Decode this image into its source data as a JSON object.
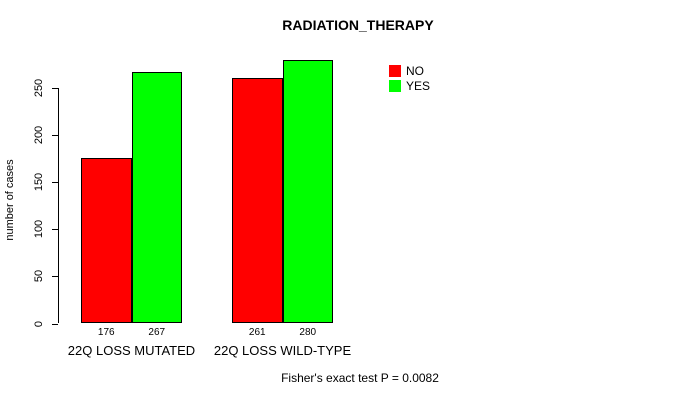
{
  "chart_data": {
    "type": "bar",
    "title": "RADIATION_THERAPY",
    "xlabel": "",
    "ylabel": "number of cases",
    "categories": [
      "22Q LOSS MUTATED",
      "22Q LOSS WILD-TYPE"
    ],
    "series": [
      {
        "name": "NO",
        "color": "#FF0000",
        "values": [
          176,
          261
        ]
      },
      {
        "name": "YES",
        "color": "#00FF00",
        "values": [
          267,
          280
        ]
      }
    ],
    "bar_value_labels": [
      [
        "176",
        "267"
      ],
      [
        "261",
        "280"
      ]
    ],
    "yticks": [
      0,
      50,
      100,
      150,
      200,
      250
    ],
    "ylim": [
      0,
      283
    ],
    "grid": false,
    "legend_position": "top-right",
    "bar_border_color": "#000000",
    "annotation": "Fisher's exact test P = 0.0082"
  }
}
